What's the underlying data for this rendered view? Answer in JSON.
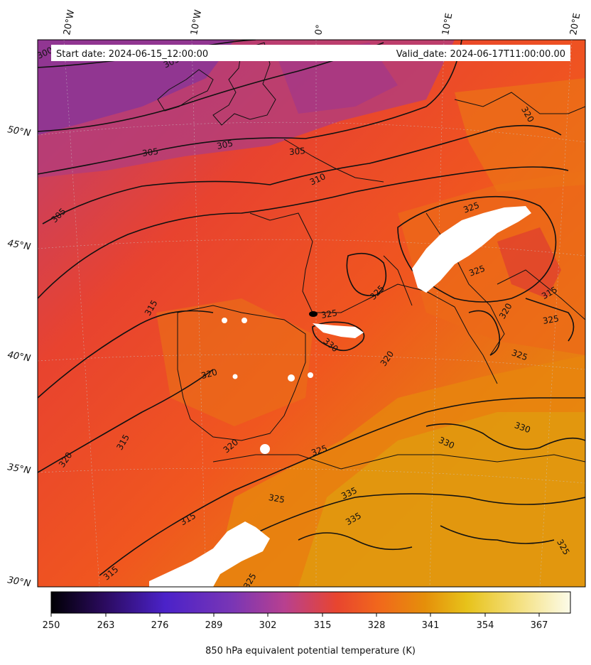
{
  "map": {
    "start_date": "Start date: 2024-06-15_12:00:00",
    "valid_date": "Valid_date: 2024-06-17T11:00:00.00",
    "longitude_labels": [
      "20°W",
      "10°W",
      "0°",
      "10°E",
      "20°E"
    ],
    "latitude_labels": [
      "50°N",
      "45°N",
      "40°N",
      "35°N",
      "30°N"
    ],
    "contour_labels": [
      "300",
      "305",
      "305",
      "305",
      "305",
      "305",
      "310",
      "315",
      "315",
      "315",
      "315",
      "320",
      "320",
      "320",
      "320",
      "320",
      "320",
      "325",
      "325",
      "325",
      "325",
      "325",
      "325",
      "325",
      "325",
      "325",
      "330",
      "330",
      "330",
      "335",
      "335",
      "315",
      "325"
    ]
  },
  "colorbar": {
    "label": "850 hPa equivalent potential temperature (K)",
    "ticks": [
      "250",
      "263",
      "276",
      "289",
      "302",
      "315",
      "328",
      "341",
      "354",
      "367"
    ],
    "colormap": [
      "#000004",
      "#2a0a5c",
      "#4b22c9",
      "#7a36b5",
      "#b8408f",
      "#e8452f",
      "#f1671c",
      "#e58f0a",
      "#e7c21a",
      "#f4e07e",
      "#fcfbe9"
    ]
  }
}
